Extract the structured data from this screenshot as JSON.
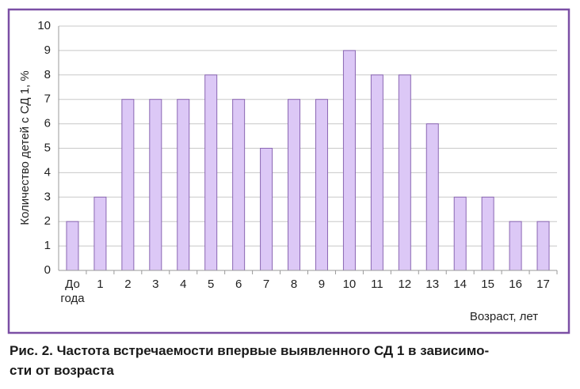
{
  "chart_data": {
    "type": "bar",
    "y_label": "Количество детей с СД 1, %",
    "x_label": "Возраст,  лет",
    "categories": [
      "До года",
      "1",
      "2",
      "3",
      "4",
      "5",
      "6",
      "7",
      "8",
      "9",
      "10",
      "11",
      "12",
      "13",
      "14",
      "15",
      "16",
      "17"
    ],
    "values": [
      2,
      3,
      7,
      7,
      7,
      8,
      7,
      5,
      7,
      7,
      9,
      8,
      8,
      6,
      3,
      3,
      2,
      2
    ],
    "color": "#dcc8f6",
    "ylim": [
      0,
      10
    ],
    "yticks": [
      0,
      1,
      2,
      3,
      4,
      5,
      6,
      7,
      8,
      9,
      10
    ],
    "grid": true
  },
  "caption": [
    "Рис. 2. Частота встречаемости впервые выявленного СД 1 в зависимо-",
    "сти от возраста"
  ]
}
